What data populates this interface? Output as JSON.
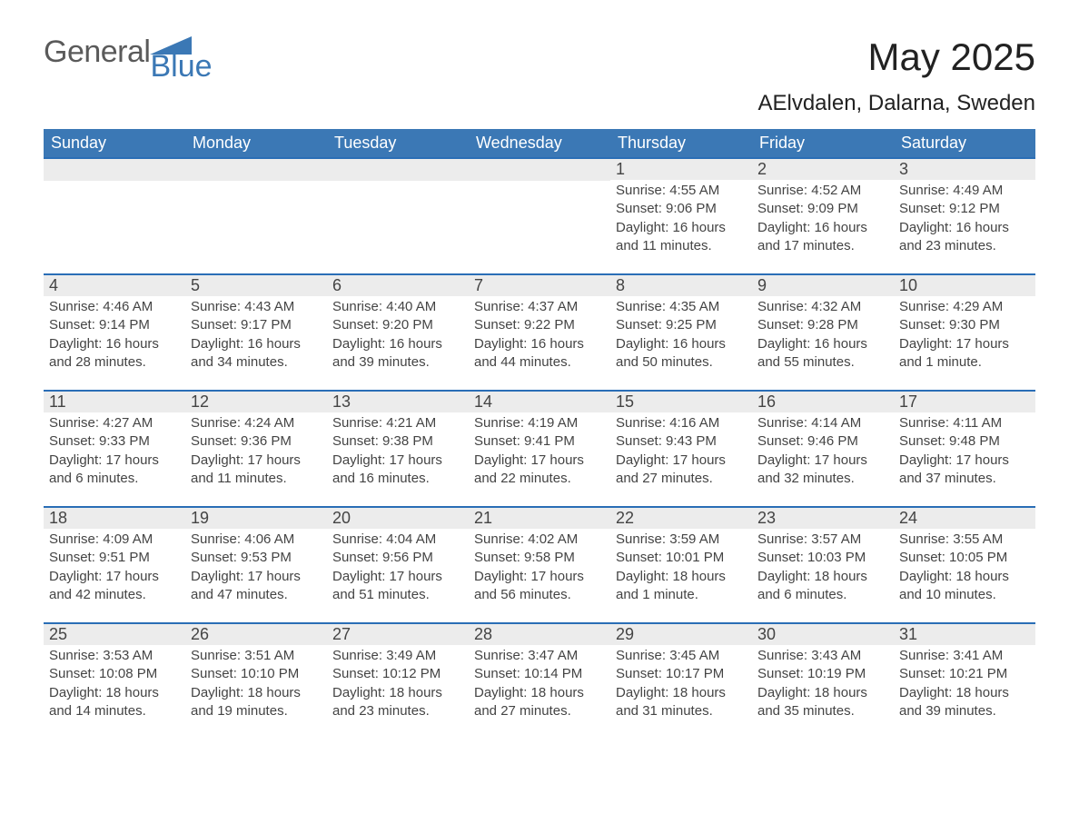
{
  "logo": {
    "word1": "General",
    "word2": "Blue"
  },
  "title": {
    "month_year": "May 2025",
    "location": "AElvdalen, Dalarna, Sweden"
  },
  "weekdays": [
    "Sunday",
    "Monday",
    "Tuesday",
    "Wednesday",
    "Thursday",
    "Friday",
    "Saturday"
  ],
  "colors": {
    "header_blue": "#3b78b5",
    "accent_blue": "#2a6eb6",
    "row_grey": "#ececec",
    "text_dark": "#333333",
    "text_body": "#444444",
    "logo_grey": "#5a5a5a",
    "logo_blue": "#3b78b5",
    "background": "#ffffff"
  },
  "calendar": {
    "type": "table",
    "first_weekday_index": 4,
    "days": [
      {
        "n": 1,
        "sunrise": "4:55 AM",
        "sunset": "9:06 PM",
        "daylight": "16 hours and 11 minutes."
      },
      {
        "n": 2,
        "sunrise": "4:52 AM",
        "sunset": "9:09 PM",
        "daylight": "16 hours and 17 minutes."
      },
      {
        "n": 3,
        "sunrise": "4:49 AM",
        "sunset": "9:12 PM",
        "daylight": "16 hours and 23 minutes."
      },
      {
        "n": 4,
        "sunrise": "4:46 AM",
        "sunset": "9:14 PM",
        "daylight": "16 hours and 28 minutes."
      },
      {
        "n": 5,
        "sunrise": "4:43 AM",
        "sunset": "9:17 PM",
        "daylight": "16 hours and 34 minutes."
      },
      {
        "n": 6,
        "sunrise": "4:40 AM",
        "sunset": "9:20 PM",
        "daylight": "16 hours and 39 minutes."
      },
      {
        "n": 7,
        "sunrise": "4:37 AM",
        "sunset": "9:22 PM",
        "daylight": "16 hours and 44 minutes."
      },
      {
        "n": 8,
        "sunrise": "4:35 AM",
        "sunset": "9:25 PM",
        "daylight": "16 hours and 50 minutes."
      },
      {
        "n": 9,
        "sunrise": "4:32 AM",
        "sunset": "9:28 PM",
        "daylight": "16 hours and 55 minutes."
      },
      {
        "n": 10,
        "sunrise": "4:29 AM",
        "sunset": "9:30 PM",
        "daylight": "17 hours and 1 minute."
      },
      {
        "n": 11,
        "sunrise": "4:27 AM",
        "sunset": "9:33 PM",
        "daylight": "17 hours and 6 minutes."
      },
      {
        "n": 12,
        "sunrise": "4:24 AM",
        "sunset": "9:36 PM",
        "daylight": "17 hours and 11 minutes."
      },
      {
        "n": 13,
        "sunrise": "4:21 AM",
        "sunset": "9:38 PM",
        "daylight": "17 hours and 16 minutes."
      },
      {
        "n": 14,
        "sunrise": "4:19 AM",
        "sunset": "9:41 PM",
        "daylight": "17 hours and 22 minutes."
      },
      {
        "n": 15,
        "sunrise": "4:16 AM",
        "sunset": "9:43 PM",
        "daylight": "17 hours and 27 minutes."
      },
      {
        "n": 16,
        "sunrise": "4:14 AM",
        "sunset": "9:46 PM",
        "daylight": "17 hours and 32 minutes."
      },
      {
        "n": 17,
        "sunrise": "4:11 AM",
        "sunset": "9:48 PM",
        "daylight": "17 hours and 37 minutes."
      },
      {
        "n": 18,
        "sunrise": "4:09 AM",
        "sunset": "9:51 PM",
        "daylight": "17 hours and 42 minutes."
      },
      {
        "n": 19,
        "sunrise": "4:06 AM",
        "sunset": "9:53 PM",
        "daylight": "17 hours and 47 minutes."
      },
      {
        "n": 20,
        "sunrise": "4:04 AM",
        "sunset": "9:56 PM",
        "daylight": "17 hours and 51 minutes."
      },
      {
        "n": 21,
        "sunrise": "4:02 AM",
        "sunset": "9:58 PM",
        "daylight": "17 hours and 56 minutes."
      },
      {
        "n": 22,
        "sunrise": "3:59 AM",
        "sunset": "10:01 PM",
        "daylight": "18 hours and 1 minute."
      },
      {
        "n": 23,
        "sunrise": "3:57 AM",
        "sunset": "10:03 PM",
        "daylight": "18 hours and 6 minutes."
      },
      {
        "n": 24,
        "sunrise": "3:55 AM",
        "sunset": "10:05 PM",
        "daylight": "18 hours and 10 minutes."
      },
      {
        "n": 25,
        "sunrise": "3:53 AM",
        "sunset": "10:08 PM",
        "daylight": "18 hours and 14 minutes."
      },
      {
        "n": 26,
        "sunrise": "3:51 AM",
        "sunset": "10:10 PM",
        "daylight": "18 hours and 19 minutes."
      },
      {
        "n": 27,
        "sunrise": "3:49 AM",
        "sunset": "10:12 PM",
        "daylight": "18 hours and 23 minutes."
      },
      {
        "n": 28,
        "sunrise": "3:47 AM",
        "sunset": "10:14 PM",
        "daylight": "18 hours and 27 minutes."
      },
      {
        "n": 29,
        "sunrise": "3:45 AM",
        "sunset": "10:17 PM",
        "daylight": "18 hours and 31 minutes."
      },
      {
        "n": 30,
        "sunrise": "3:43 AM",
        "sunset": "10:19 PM",
        "daylight": "18 hours and 35 minutes."
      },
      {
        "n": 31,
        "sunrise": "3:41 AM",
        "sunset": "10:21 PM",
        "daylight": "18 hours and 39 minutes."
      }
    ]
  },
  "labels": {
    "sunrise": "Sunrise:",
    "sunset": "Sunset:",
    "daylight": "Daylight:"
  }
}
